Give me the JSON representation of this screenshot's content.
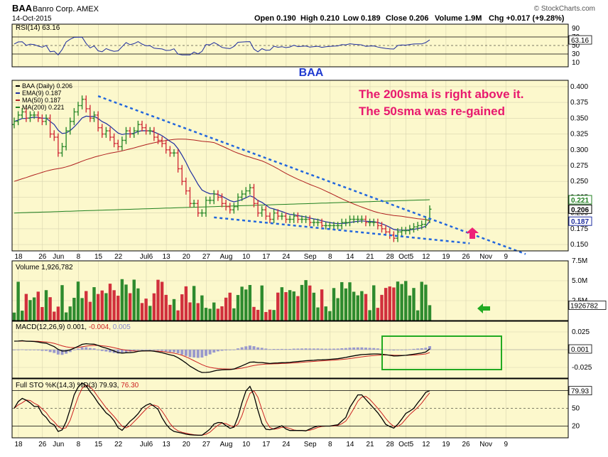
{
  "header": {
    "symbol": "BAA",
    "company": "Banro Corp. AMEX",
    "date": "14-Oct-2015",
    "open": "Open 0.190",
    "high": "High 0.210",
    "low": "Low 0.189",
    "close": "Close 0.206",
    "volume": "Volume 1.9M",
    "change": "Chg +0.017 (+9.28%)",
    "watermark": "© StockCharts.com"
  },
  "rsi_panel": {
    "label": "RSI(14) 63.16",
    "ticks": [
      "90",
      "70",
      "50",
      "30",
      "10"
    ],
    "current": "63.16",
    "title_annotation": "BAA"
  },
  "price_panel": {
    "legend": [
      "BAA (Daily) 0.206",
      "EMA(9) 0.187",
      "MA(50) 0.187",
      "MA(200) 0.221"
    ],
    "y_ticks": [
      "0.400",
      "0.375",
      "0.350",
      "0.325",
      "0.300",
      "0.275",
      "0.250",
      "0.225",
      "0.200",
      "0.175",
      "0.150"
    ],
    "price_tags": [
      "0.221",
      "0.206",
      "0.187"
    ],
    "annotation_line1": "The 200sma is right above it.",
    "annotation_line2": "The 50sma was re-gained"
  },
  "x_axis": {
    "labels": [
      "18",
      "26",
      "Jun",
      "8",
      "15",
      "22",
      "Jul6",
      "13",
      "20",
      "27",
      "Aug",
      "10",
      "17",
      "24",
      "Sep",
      "8",
      "14",
      "21",
      "28",
      "Oct5",
      "12",
      "19",
      "26",
      "Nov",
      "9"
    ]
  },
  "volume_panel": {
    "label": "Volume 1,926,782",
    "ticks": [
      "7.5M",
      "5.0M",
      "2.5M"
    ],
    "current": "1926782"
  },
  "macd_panel": {
    "label_main": "MACD(12,26,9) 0.001,",
    "label_signal": " -0.004,",
    "label_hist": " 0.005",
    "ticks": [
      "0.025",
      "-0.025"
    ],
    "current": "0.001"
  },
  "sto_panel": {
    "label_main": "Full STO %K(14,3) %D(3) 79.93,",
    "label_d": " 76.30",
    "ticks": [
      "80",
      "50",
      "20"
    ],
    "current": "79.93"
  },
  "colors": {
    "panel_bg": "#fcf8cc",
    "up": "#2e8b2e",
    "down": "#d1303c",
    "ema": "#1f2ea0",
    "ma50": "#b02020",
    "ma200": "#208020",
    "trendline": "#2266dd",
    "annotation": "#e8186e",
    "baa_label": "#1f3ad0",
    "green_arrow": "#22aa22",
    "macd_box": "#22aa22",
    "pink_arrow": "#ee2277"
  },
  "chart_data": {
    "type": "candlestick",
    "dates": [
      "2015-05-18",
      "2015-05-19",
      "2015-05-20",
      "2015-05-21",
      "2015-05-22",
      "2015-05-26",
      "2015-05-27",
      "2015-05-28",
      "2015-05-29",
      "2015-06-01",
      "2015-06-02",
      "2015-06-03",
      "2015-06-04",
      "2015-06-05",
      "2015-06-08",
      "2015-06-09",
      "2015-06-10",
      "2015-06-11",
      "2015-06-12",
      "2015-06-15",
      "2015-06-16",
      "2015-06-17",
      "2015-06-18",
      "2015-06-19",
      "2015-06-22",
      "2015-06-23",
      "2015-06-24",
      "2015-06-25",
      "2015-06-26",
      "2015-06-29",
      "2015-06-30",
      "2015-07-01",
      "2015-07-02",
      "2015-07-06",
      "2015-07-07",
      "2015-07-08",
      "2015-07-09",
      "2015-07-10",
      "2015-07-13",
      "2015-07-14",
      "2015-07-15",
      "2015-07-16",
      "2015-07-17",
      "2015-07-20",
      "2015-07-21",
      "2015-07-22",
      "2015-07-23",
      "2015-07-24",
      "2015-07-27",
      "2015-07-28",
      "2015-07-29",
      "2015-07-30",
      "2015-07-31",
      "2015-08-03",
      "2015-08-04",
      "2015-08-05",
      "2015-08-06",
      "2015-08-07",
      "2015-08-10",
      "2015-08-11",
      "2015-08-12",
      "2015-08-13",
      "2015-08-14",
      "2015-08-17",
      "2015-08-18",
      "2015-08-19",
      "2015-08-20",
      "2015-08-21",
      "2015-08-24",
      "2015-08-25",
      "2015-08-26",
      "2015-08-27",
      "2015-08-28",
      "2015-08-31",
      "2015-09-01",
      "2015-09-02",
      "2015-09-03",
      "2015-09-04",
      "2015-09-08",
      "2015-09-09",
      "2015-09-10",
      "2015-09-11",
      "2015-09-14",
      "2015-09-15",
      "2015-09-16",
      "2015-09-17",
      "2015-09-18",
      "2015-09-21",
      "2015-09-22",
      "2015-09-23",
      "2015-09-24",
      "2015-09-25",
      "2015-09-28",
      "2015-09-29",
      "2015-09-30",
      "2015-10-01",
      "2015-10-02",
      "2015-10-05",
      "2015-10-06",
      "2015-10-07",
      "2015-10-08",
      "2015-10-09",
      "2015-10-12",
      "2015-10-13",
      "2015-10-14"
    ],
    "close": [
      0.345,
      0.355,
      0.36,
      0.35,
      0.355,
      0.355,
      0.35,
      0.345,
      0.35,
      0.325,
      0.32,
      0.295,
      0.305,
      0.33,
      0.345,
      0.36,
      0.37,
      0.38,
      0.365,
      0.35,
      0.355,
      0.335,
      0.325,
      0.33,
      0.32,
      0.31,
      0.305,
      0.315,
      0.33,
      0.325,
      0.33,
      0.34,
      0.335,
      0.33,
      0.33,
      0.32,
      0.315,
      0.31,
      0.3,
      0.295,
      0.295,
      0.27,
      0.25,
      0.235,
      0.215,
      0.215,
      0.2,
      0.2,
      0.22,
      0.22,
      0.23,
      0.225,
      0.215,
      0.21,
      0.205,
      0.21,
      0.225,
      0.23,
      0.235,
      0.24,
      0.215,
      0.2,
      0.205,
      0.195,
      0.19,
      0.2,
      0.195,
      0.195,
      0.19,
      0.19,
      0.195,
      0.19,
      0.19,
      0.19,
      0.185,
      0.185,
      0.185,
      0.18,
      0.18,
      0.18,
      0.18,
      0.18,
      0.185,
      0.185,
      0.19,
      0.19,
      0.19,
      0.19,
      0.185,
      0.185,
      0.185,
      0.18,
      0.175,
      0.17,
      0.165,
      0.16,
      0.17,
      0.172,
      0.172,
      0.175,
      0.178,
      0.18,
      0.182,
      0.189,
      0.206
    ],
    "open": [
      0.34,
      0.345,
      0.355,
      0.36,
      0.35,
      0.355,
      0.355,
      0.35,
      0.345,
      0.35,
      0.325,
      0.32,
      0.295,
      0.305,
      0.33,
      0.345,
      0.36,
      0.37,
      0.38,
      0.365,
      0.35,
      0.355,
      0.335,
      0.325,
      0.33,
      0.32,
      0.31,
      0.305,
      0.315,
      0.33,
      0.325,
      0.33,
      0.34,
      0.335,
      0.33,
      0.33,
      0.32,
      0.315,
      0.31,
      0.3,
      0.295,
      0.295,
      0.27,
      0.25,
      0.235,
      0.215,
      0.215,
      0.2,
      0.2,
      0.22,
      0.22,
      0.23,
      0.225,
      0.215,
      0.21,
      0.205,
      0.21,
      0.225,
      0.23,
      0.235,
      0.24,
      0.215,
      0.2,
      0.205,
      0.195,
      0.19,
      0.2,
      0.195,
      0.195,
      0.19,
      0.19,
      0.195,
      0.19,
      0.19,
      0.19,
      0.185,
      0.185,
      0.185,
      0.18,
      0.18,
      0.18,
      0.18,
      0.18,
      0.185,
      0.185,
      0.19,
      0.19,
      0.19,
      0.19,
      0.185,
      0.185,
      0.185,
      0.18,
      0.175,
      0.17,
      0.165,
      0.16,
      0.17,
      0.172,
      0.172,
      0.175,
      0.178,
      0.18,
      0.182,
      0.19
    ],
    "ema9_last": 0.187,
    "ma50_last": 0.187,
    "ma200_last": 0.221,
    "rsi_last": 63.16,
    "volume_last": 1926782,
    "macd_last": 0.001,
    "macd_signal_last": -0.004,
    "macd_hist_last": 0.005,
    "sto_k_last": 79.93,
    "sto_d_last": 76.3,
    "price_ylim": [
      0.14,
      0.41
    ],
    "rsi_ylim": [
      0,
      100
    ],
    "volume_ylim": [
      0,
      7500000
    ],
    "macd_ylim": [
      -0.04,
      0.04
    ],
    "sto_ylim": [
      0,
      100
    ]
  }
}
